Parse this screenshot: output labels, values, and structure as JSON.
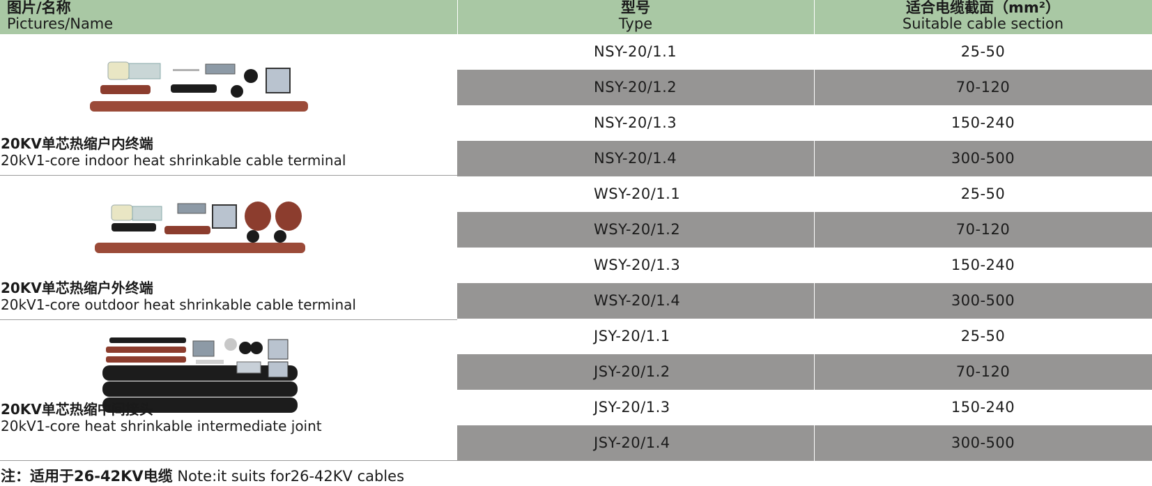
{
  "header": {
    "name_cn": "图片/名称",
    "name_en": "Pictures/Name",
    "type_cn": "型号",
    "type_en": "Type",
    "section_cn": "适合电缆截面（mm²）",
    "section_en": "Suitable cable section"
  },
  "groups": [
    {
      "name_cn": "20KV单芯热缩户内终端",
      "name_en": "20kV1-core indoor heat shrinkable cable terminal",
      "rows": [
        {
          "type": "NSY-20/1.1",
          "section": "25-50"
        },
        {
          "type": "NSY-20/1.2",
          "section": "70-120"
        },
        {
          "type": "NSY-20/1.3",
          "section": "150-240"
        },
        {
          "type": "NSY-20/1.4",
          "section": "300-500"
        }
      ]
    },
    {
      "name_cn": "20KV单芯热缩户外终端",
      "name_en": "20kV1-core outdoor heat shrinkable cable terminal",
      "rows": [
        {
          "type": "WSY-20/1.1",
          "section": "25-50"
        },
        {
          "type": "WSY-20/1.2",
          "section": "70-120"
        },
        {
          "type": "WSY-20/1.3",
          "section": "150-240"
        },
        {
          "type": "WSY-20/1.4",
          "section": "300-500"
        }
      ]
    },
    {
      "name_cn": "20KV单芯热缩中间接头",
      "name_en": "20kV1-core heat shrinkable intermediate joint",
      "rows": [
        {
          "type": "JSY-20/1.1",
          "section": "25-50"
        },
        {
          "type": "JSY-20/1.2",
          "section": "70-120"
        },
        {
          "type": "JSY-20/1.3",
          "section": "150-240"
        },
        {
          "type": "JSY-20/1.4",
          "section": "300-500"
        }
      ]
    }
  ],
  "note": {
    "cn": "注：适用于26-42KV电缆",
    "en": "Note:it suits for26-42KV cables"
  },
  "colors": {
    "header_bg": "#a9c8a4",
    "shaded_row": "#969594",
    "tube_red": "#9b4a38",
    "tube_black": "#1c1c1c"
  }
}
